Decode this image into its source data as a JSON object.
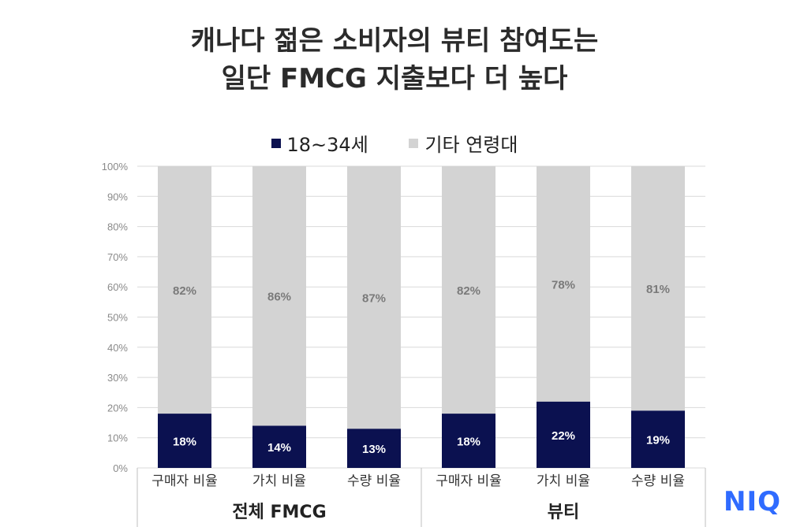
{
  "title_lines": [
    "캐나다 젊은 소비자의 뷰티 참여도는",
    "일단 FMCG 지출보다 더 높다"
  ],
  "logo_text": "NIQ",
  "colors": {
    "young": "#0b1150",
    "other": "#d3d3d3",
    "grid": "#d9d9d9"
  },
  "chart_data": {
    "type": "bar",
    "stacked": true,
    "title": "캐나다 젊은 소비자의 뷰티 참여도는 일단 FMCG 지출보다 더 높다",
    "legend_position": "top",
    "grid": true,
    "ylim": [
      0,
      100
    ],
    "y_ticks": [
      "0%",
      "10%",
      "20%",
      "30%",
      "40%",
      "50%",
      "60%",
      "70%",
      "80%",
      "90%",
      "100%"
    ],
    "categories": [
      "구매자 비율",
      "가치 비율",
      "수량 비율",
      "구매자 비율",
      "가치 비율",
      "수량 비율"
    ],
    "groups": [
      {
        "label": "전체 FMCG",
        "categories": [
          0,
          1,
          2
        ]
      },
      {
        "label": "뷰티",
        "categories": [
          3,
          4,
          5
        ]
      }
    ],
    "series": [
      {
        "name": "18~34세",
        "values": [
          18,
          14,
          13,
          18,
          22,
          19
        ],
        "labels": [
          "18%",
          "14%",
          "13%",
          "18%",
          "22%",
          "19%"
        ]
      },
      {
        "name": "기타 연령대",
        "values": [
          82,
          86,
          87,
          82,
          78,
          81
        ],
        "labels": [
          "82%",
          "86%",
          "87%",
          "82%",
          "78%",
          "81%"
        ]
      }
    ]
  }
}
